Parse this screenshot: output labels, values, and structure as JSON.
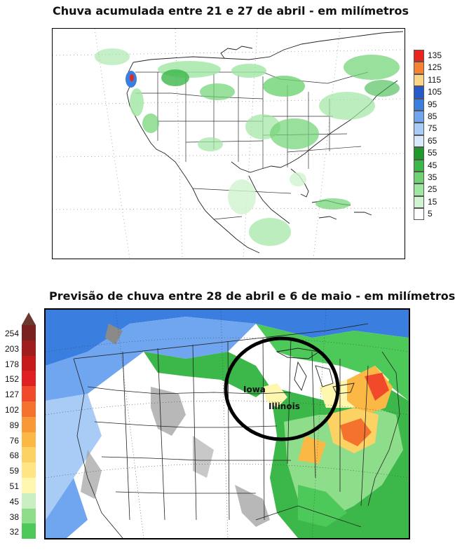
{
  "map1": {
    "title": "Chuva acumulada entre 21 e 27 de abril - em milímetros",
    "legend": [
      {
        "label": "135",
        "color": "#e8261f"
      },
      {
        "label": "125",
        "color": "#f78232"
      },
      {
        "label": "115",
        "color": "#fbd58a"
      },
      {
        "label": "105",
        "color": "#2659c9"
      },
      {
        "label": "95",
        "color": "#3a7fe0"
      },
      {
        "label": "85",
        "color": "#6fa6ef"
      },
      {
        "label": "75",
        "color": "#a8ccf5"
      },
      {
        "label": "65",
        "color": "#d6eafc"
      },
      {
        "label": "55",
        "color": "#1f9a2a"
      },
      {
        "label": "45",
        "color": "#3cb84a"
      },
      {
        "label": "35",
        "color": "#6fd374"
      },
      {
        "label": "25",
        "color": "#9fe6a2"
      },
      {
        "label": "15",
        "color": "#cff4cf"
      },
      {
        "label": "5",
        "color": "#ffffff"
      }
    ]
  },
  "map2": {
    "title": "Previsão de chuva entre 28 de abril e 6 de maio - em milímetros",
    "legend": [
      {
        "label": "254",
        "color": "#7a2020"
      },
      {
        "label": "203",
        "color": "#a01d1d"
      },
      {
        "label": "178",
        "color": "#c41a1a"
      },
      {
        "label": "152",
        "color": "#e02020"
      },
      {
        "label": "127",
        "color": "#f04a2a"
      },
      {
        "label": "102",
        "color": "#f5722e"
      },
      {
        "label": "89",
        "color": "#f89836"
      },
      {
        "label": "76",
        "color": "#fbb844"
      },
      {
        "label": "68",
        "color": "#fdd264"
      },
      {
        "label": "59",
        "color": "#ffe584"
      },
      {
        "label": "51",
        "color": "#fff6b0"
      },
      {
        "label": "45",
        "color": "#c9eec2"
      },
      {
        "label": "38",
        "color": "#8edd8a"
      },
      {
        "label": "32",
        "color": "#4dc95a"
      }
    ],
    "labels": {
      "iowa": "Iowa",
      "illinois": "Illinois"
    }
  }
}
